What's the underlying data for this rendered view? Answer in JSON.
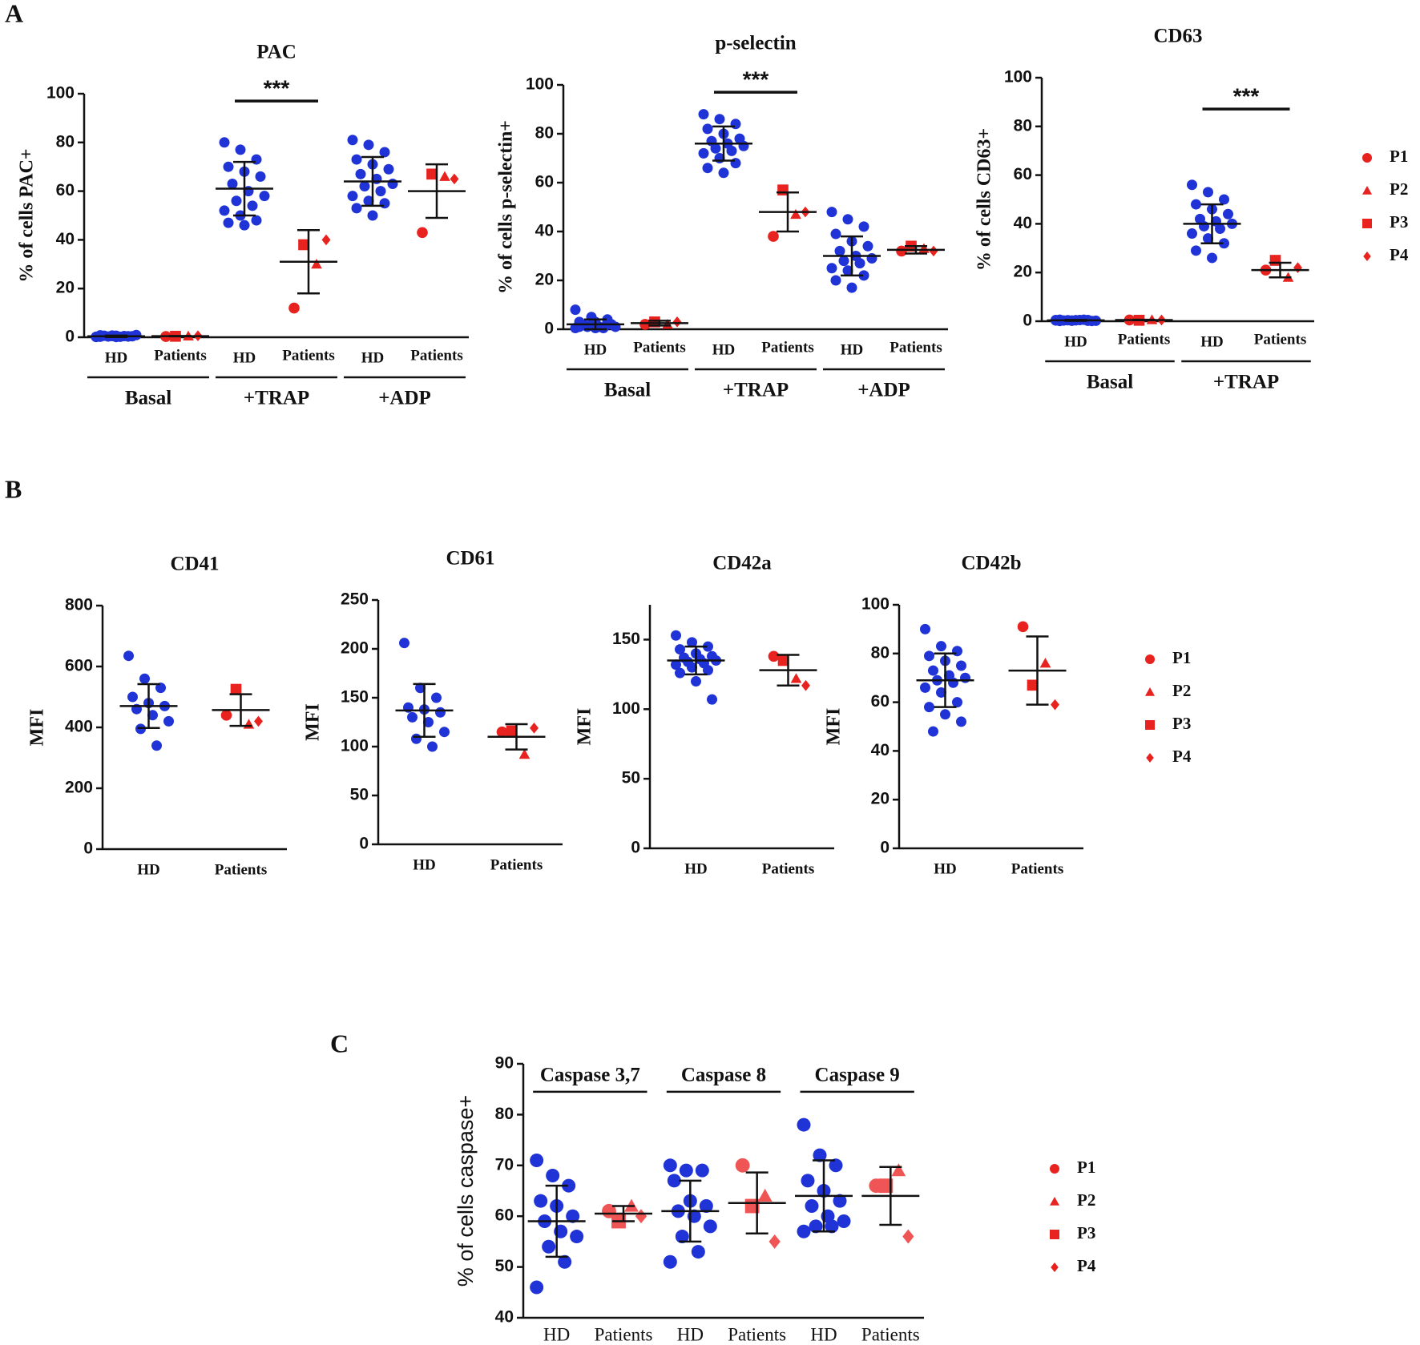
{
  "panel_labels": [
    "A",
    "B",
    "C"
  ],
  "legend": {
    "labels": [
      "P1",
      "P2",
      "P3",
      "P4"
    ],
    "markers": [
      "circle",
      "triangle",
      "square",
      "diamond"
    ],
    "color": "#e8221e"
  },
  "chart_data": [
    {
      "type": "dot",
      "title": "PAC",
      "ylabel": "% of cells PAC+",
      "ylim": [
        0,
        100
      ],
      "yticks": [
        0,
        20,
        40,
        60,
        80,
        100
      ],
      "hd_color": "#1f33d6",
      "patient_color": "#e8221e",
      "categories": [
        "HD",
        "Patients",
        "HD",
        "Patients",
        "HD",
        "Patients"
      ],
      "conditions": [
        "Basal",
        "+TRAP",
        "+ADP"
      ],
      "significance": [
        null,
        "***",
        null
      ],
      "points": [
        [
          0.2,
          0.5,
          0.3,
          0.8,
          0.1,
          0.4,
          0.6,
          0.2,
          0.9,
          0.3,
          0.5,
          0.1,
          0.7,
          0.4,
          0.2,
          0.6
        ],
        [
          0.3,
          0.5,
          0.4,
          0.6
        ],
        [
          80,
          77,
          73,
          70,
          68,
          66,
          63,
          60,
          58,
          56,
          54,
          52,
          50,
          48,
          47,
          46
        ],
        [
          12,
          30,
          38,
          40
        ],
        [
          81,
          79,
          76,
          73,
          71,
          69,
          67,
          65,
          63,
          62,
          60,
          58,
          56,
          55,
          53,
          50
        ],
        [
          43,
          66,
          67,
          65
        ]
      ],
      "mean": [
        0.4,
        0.45,
        61,
        31,
        64,
        60
      ],
      "sd": [
        0.3,
        0.1,
        11,
        13,
        10,
        11
      ]
    },
    {
      "type": "dot",
      "title": "p-selectin",
      "ylabel": "% of cells p-selectin+",
      "ylim": [
        0,
        100
      ],
      "yticks": [
        0,
        20,
        40,
        60,
        80,
        100
      ],
      "hd_color": "#1f33d6",
      "patient_color": "#e8221e",
      "categories": [
        "HD",
        "Patients",
        "HD",
        "Patients",
        "HD",
        "Patients"
      ],
      "conditions": [
        "Basal",
        "+TRAP",
        "+ADP"
      ],
      "significance": [
        null,
        "***",
        null
      ],
      "points": [
        [
          8,
          5,
          4,
          3,
          3,
          2,
          2,
          1,
          1,
          1,
          0.5,
          0.5,
          2,
          3,
          1,
          0.5
        ],
        [
          2,
          2,
          3,
          3
        ],
        [
          88,
          86,
          84,
          82,
          80,
          78,
          77,
          76,
          75,
          74,
          73,
          72,
          70,
          68,
          66,
          64
        ],
        [
          38,
          47,
          57,
          48
        ],
        [
          48,
          45,
          42,
          39,
          36,
          34,
          32,
          30,
          29,
          28,
          27,
          25,
          24,
          22,
          20,
          17
        ],
        [
          32,
          33,
          34,
          32
        ]
      ],
      "mean": [
        2,
        2.5,
        76,
        48,
        30,
        32.5
      ],
      "sd": [
        2,
        1,
        7,
        8,
        8,
        1.5
      ]
    },
    {
      "type": "dot",
      "title": "CD63",
      "ylabel": "% of cells CD63+",
      "ylim": [
        0,
        100
      ],
      "yticks": [
        0,
        20,
        40,
        60,
        80,
        100
      ],
      "hd_color": "#1f33d6",
      "patient_color": "#e8221e",
      "categories": [
        "HD",
        "Patients",
        "HD",
        "Patients"
      ],
      "conditions": [
        "Basal",
        "+TRAP"
      ],
      "significance": [
        null,
        "***"
      ],
      "points": [
        [
          0.5,
          0.3,
          0.2,
          0.6,
          0.4,
          0.1,
          0.3,
          0.5,
          0.2,
          0.4,
          0.6,
          0.3,
          0.2,
          0.5,
          0.1,
          0.4
        ],
        [
          0.5,
          0.6,
          0.4,
          0.5
        ],
        [
          56,
          53,
          50,
          48,
          46,
          44,
          42,
          41,
          40,
          39,
          38,
          36,
          34,
          32,
          29,
          26
        ],
        [
          21,
          18,
          25,
          22
        ]
      ],
      "mean": [
        0.35,
        0.5,
        40,
        21
      ],
      "sd": [
        0.2,
        0.1,
        8,
        3
      ]
    },
    {
      "type": "dot",
      "title": "CD41",
      "ylabel": "MFI",
      "ylim": [
        0,
        800
      ],
      "yticks": [
        0,
        200,
        400,
        600,
        800
      ],
      "hd_color": "#1f33d6",
      "patient_color": "#e8221e",
      "categories": [
        "HD",
        "Patients"
      ],
      "points": [
        [
          635,
          560,
          530,
          500,
          480,
          470,
          460,
          440,
          420,
          395,
          340
        ],
        [
          440,
          410,
          525,
          420
        ]
      ],
      "mean": [
        470,
        457
      ],
      "sd": [
        72,
        52
      ]
    },
    {
      "type": "dot",
      "title": "CD61",
      "ylabel": "MFI",
      "ylim": [
        0,
        250
      ],
      "yticks": [
        0,
        50,
        100,
        150,
        200,
        250
      ],
      "hd_color": "#1f33d6",
      "patient_color": "#e8221e",
      "categories": [
        "HD",
        "Patients"
      ],
      "points": [
        [
          206,
          160,
          150,
          140,
          138,
          135,
          130,
          125,
          115,
          108,
          100
        ],
        [
          115,
          92,
          116,
          119
        ]
      ],
      "mean": [
        137,
        110
      ],
      "sd": [
        27,
        13
      ]
    },
    {
      "type": "dot",
      "title": "CD42a",
      "ylabel": "MFI",
      "ylim": [
        0,
        175
      ],
      "yticks": [
        0,
        50,
        100,
        150
      ],
      "hd_color": "#1f33d6",
      "patient_color": "#e8221e",
      "categories": [
        "HD",
        "Patients"
      ],
      "points": [
        [
          153,
          148,
          145,
          143,
          140,
          138,
          137,
          136,
          135,
          134,
          133,
          132,
          130,
          128,
          126,
          120,
          107
        ],
        [
          138,
          122,
          135,
          117
        ]
      ],
      "mean": [
        135,
        128
      ],
      "sd": [
        10,
        11
      ]
    },
    {
      "type": "dot",
      "title": "CD42b",
      "ylabel": "MFI",
      "ylim": [
        0,
        100
      ],
      "yticks": [
        0,
        20,
        40,
        60,
        80,
        100
      ],
      "hd_color": "#1f33d6",
      "patient_color": "#e8221e",
      "categories": [
        "HD",
        "Patients"
      ],
      "points": [
        [
          90,
          83,
          81,
          79,
          77,
          75,
          73,
          71,
          70,
          69,
          68,
          66,
          64,
          60,
          58,
          55,
          52,
          48
        ],
        [
          91,
          76,
          67,
          59
        ]
      ],
      "mean": [
        69,
        73
      ],
      "sd": [
        11,
        14
      ]
    },
    {
      "type": "dot",
      "ylabel": "% of cells caspase+",
      "ylim": [
        40,
        90
      ],
      "yticks": [
        40,
        50,
        60,
        70,
        80,
        90
      ],
      "hd_color": "#1f33d6",
      "patient_color": "#f05555",
      "categories": [
        "HD",
        "Patients",
        "HD",
        "Patients",
        "HD",
        "Patients"
      ],
      "conditions": [
        "Caspase 3,7",
        "Caspase 8",
        "Caspase 9"
      ],
      "points": [
        [
          71,
          68,
          66,
          63,
          62,
          60,
          59,
          57,
          56,
          54,
          51,
          46
        ],
        [
          61,
          62,
          59,
          60
        ],
        [
          70,
          69,
          69,
          67,
          63,
          62,
          61,
          60,
          58,
          56,
          53,
          51
        ],
        [
          70,
          64,
          62,
          55
        ],
        [
          78,
          72,
          70,
          67,
          65,
          63,
          62,
          60,
          59,
          58,
          58,
          57
        ],
        [
          66,
          69,
          66,
          56
        ]
      ],
      "mean": [
        59,
        60.5,
        61,
        62.6,
        64,
        64
      ],
      "sd": [
        7,
        1.5,
        6,
        6,
        7,
        5.7
      ]
    }
  ]
}
